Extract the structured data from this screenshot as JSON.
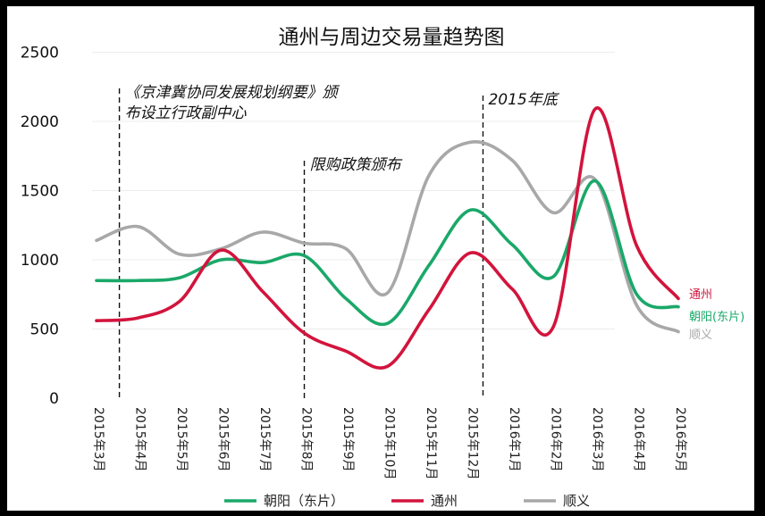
{
  "chart_data": {
    "type": "line",
    "title": "通州与周边交易量趋势图",
    "xlabel": "",
    "ylabel": "",
    "ylim": [
      0,
      2500
    ],
    "yticks": [
      0,
      500,
      1000,
      1500,
      2000,
      2500
    ],
    "grid": "horizontal",
    "legend_position": "bottom",
    "categories": [
      "2015年3月",
      "2015年4月",
      "2015年5月",
      "2015年6月",
      "2015年7月",
      "2015年8月",
      "2015年9月",
      "2015年10月",
      "2015年11月",
      "2015年12月",
      "2016年1月",
      "2016年2月",
      "2016年3月",
      "2016年4月",
      "2016年5月"
    ],
    "series": [
      {
        "name": "朝阳（东片）",
        "color": "#1aa869",
        "end_label": "朝阳(东片)",
        "values": [
          850,
          850,
          870,
          1000,
          980,
          1030,
          720,
          540,
          960,
          1360,
          1110,
          880,
          1570,
          750,
          660
        ]
      },
      {
        "name": "通州",
        "color": "#d2143c",
        "end_label": "通州",
        "values": [
          560,
          580,
          700,
          1070,
          770,
          470,
          340,
          230,
          640,
          1050,
          790,
          520,
          2090,
          1100,
          720
        ]
      },
      {
        "name": "顺义",
        "color": "#a8a8a8",
        "end_label": "顺义",
        "values": [
          1140,
          1240,
          1040,
          1080,
          1200,
          1120,
          1080,
          760,
          1610,
          1850,
          1720,
          1340,
          1580,
          670,
          480
        ]
      }
    ],
    "annotations": [
      {
        "text": "《京津冀协同发展规划纲要》颁",
        "text2": "布设立行政副中心",
        "x_index": 0.55
      },
      {
        "text": "限购政策颁布",
        "text2": "",
        "x_index": 5
      },
      {
        "text": "2015年底",
        "text2": "",
        "x_index": 9.3
      }
    ]
  }
}
